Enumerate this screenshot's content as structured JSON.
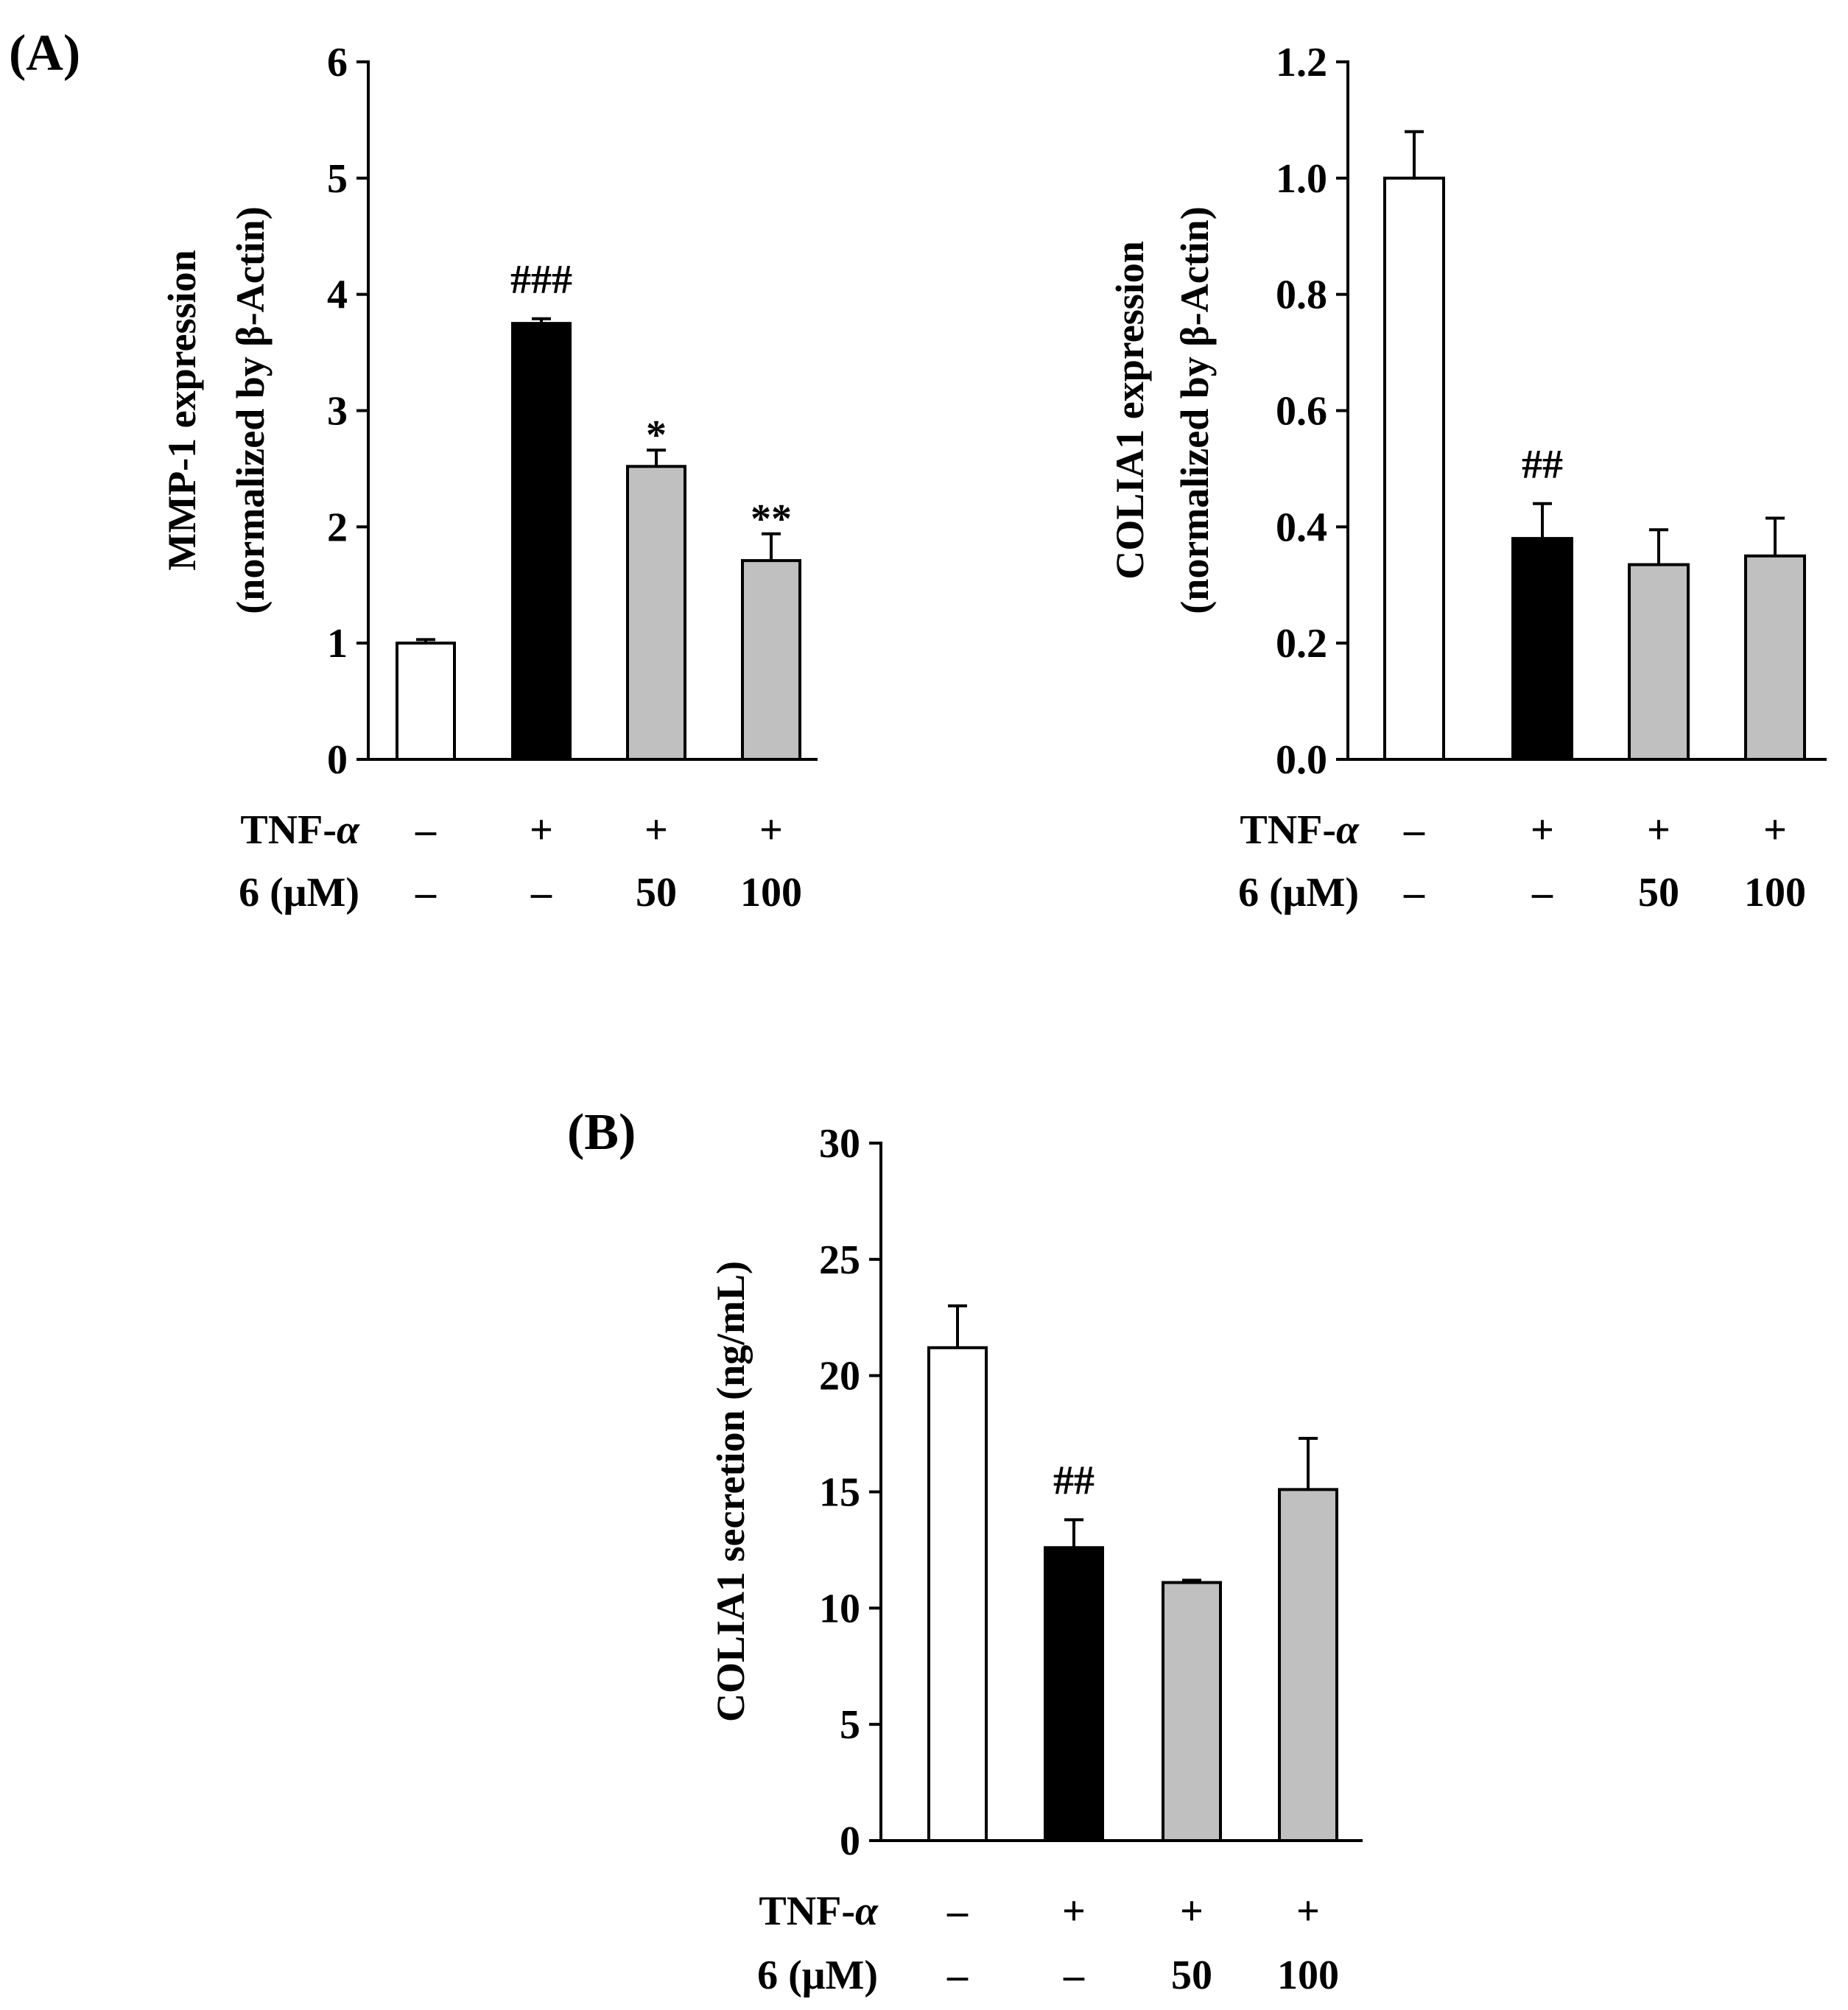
{
  "figure": {
    "panels": [
      {
        "id": "A",
        "label": "(A)"
      },
      {
        "id": "B",
        "label": "(B)"
      }
    ]
  },
  "colors": {
    "control": "#ffffff",
    "tnf": "#000000",
    "treated": "#c0c0c0",
    "axis": "#000000"
  },
  "conditions": {
    "row1_label": "TNF-α",
    "row1_label_parts": [
      "TNF-",
      "α"
    ],
    "row1_values": [
      "–",
      "+",
      "+",
      "+"
    ],
    "row2_label": "6 (μM)",
    "row2_values": [
      "–",
      "–",
      "50",
      "100"
    ]
  },
  "chart_data": [
    {
      "id": "mmp1",
      "panel": "A",
      "type": "bar",
      "ylabel_line1": "MMP-1 expression",
      "ylabel_line2": "(normalized by β-Actin)",
      "ylim": [
        0,
        6
      ],
      "yticks": [
        "0",
        "1",
        "2",
        "3",
        "4",
        "5",
        "6"
      ],
      "categories": [
        "control",
        "TNF-α",
        "TNF-α + 6 50 μM",
        "TNF-α + 6 100 μM"
      ],
      "values": [
        1.0,
        3.75,
        2.52,
        1.71
      ],
      "errors": [
        0.03,
        0.04,
        0.14,
        0.23
      ],
      "colors": [
        "control",
        "tnf",
        "treated",
        "treated"
      ],
      "significance": [
        "",
        "###",
        "*",
        "**"
      ]
    },
    {
      "id": "col1a1-expr",
      "panel": "A",
      "type": "bar",
      "ylabel_line1": "COLIA1 expression",
      "ylabel_line2": "(normalized by β-Actin)",
      "ylim": [
        0,
        1.2
      ],
      "yticks": [
        "0.0",
        "0.2",
        "0.4",
        "0.6",
        "0.8",
        "1.0",
        "1.2"
      ],
      "categories": [
        "control",
        "TNF-α",
        "TNF-α + 6 50 μM",
        "TNF-α + 6 100 μM"
      ],
      "values": [
        1.0,
        0.38,
        0.335,
        0.35
      ],
      "errors": [
        0.08,
        0.06,
        0.06,
        0.065
      ],
      "colors": [
        "control",
        "tnf",
        "treated",
        "treated"
      ],
      "significance": [
        "",
        "##",
        "",
        ""
      ]
    },
    {
      "id": "col1a1-secr",
      "panel": "B",
      "type": "bar",
      "ylabel_line1": "COLIA1 secretion (ng/mL)",
      "ylabel_line2": "",
      "ylim": [
        0,
        30
      ],
      "yticks": [
        "0",
        "5",
        "10",
        "15",
        "20",
        "25",
        "30"
      ],
      "categories": [
        "control",
        "TNF-α",
        "TNF-α + 6 50 μM",
        "TNF-α + 6 100 μM"
      ],
      "values": [
        21.2,
        12.6,
        11.1,
        15.1
      ],
      "errors": [
        1.8,
        1.2,
        0.1,
        2.2
      ],
      "colors": [
        "control",
        "tnf",
        "treated",
        "treated"
      ],
      "significance": [
        "",
        "##",
        "",
        ""
      ]
    }
  ]
}
